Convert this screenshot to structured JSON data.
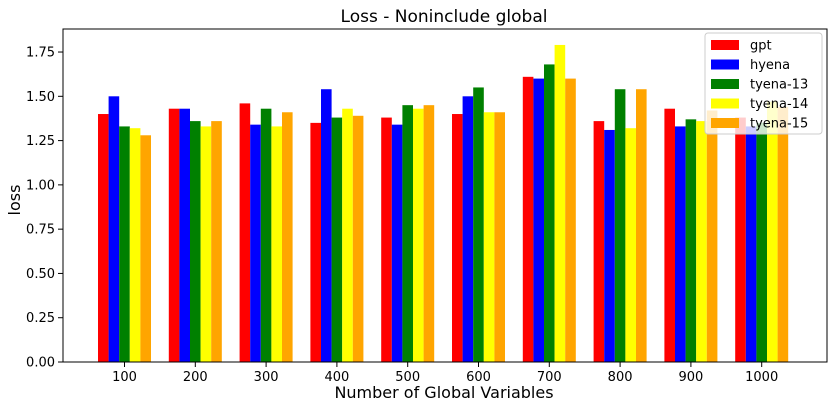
{
  "chart_data": {
    "type": "bar",
    "title": "Loss - Noninclude global",
    "xlabel": "Number of Global Variables",
    "ylabel": "loss",
    "categories": [
      "100",
      "200",
      "300",
      "400",
      "500",
      "600",
      "700",
      "800",
      "900",
      "1000"
    ],
    "ylim": [
      0,
      1.88
    ],
    "yticks": [
      "0.00",
      "0.25",
      "0.50",
      "0.75",
      "1.00",
      "1.25",
      "1.50",
      "1.75"
    ],
    "legend_position": "top-right",
    "series": [
      {
        "name": "gpt",
        "color": "#ff0000",
        "values": [
          1.4,
          1.43,
          1.46,
          1.35,
          1.38,
          1.4,
          1.61,
          1.36,
          1.43,
          1.38
        ]
      },
      {
        "name": "hyena",
        "color": "#0000ff",
        "values": [
          1.5,
          1.43,
          1.34,
          1.54,
          1.34,
          1.5,
          1.6,
          1.31,
          1.33,
          1.33
        ]
      },
      {
        "name": "tyena-13",
        "color": "#008000",
        "values": [
          1.33,
          1.36,
          1.43,
          1.38,
          1.45,
          1.55,
          1.68,
          1.54,
          1.37,
          1.35
        ]
      },
      {
        "name": "tyena-14",
        "color": "#ffff00",
        "values": [
          1.32,
          1.33,
          1.33,
          1.43,
          1.43,
          1.41,
          1.79,
          1.32,
          1.36,
          1.47
        ]
      },
      {
        "name": "tyena-15",
        "color": "#ffa500",
        "values": [
          1.28,
          1.36,
          1.41,
          1.39,
          1.45,
          1.41,
          1.6,
          1.54,
          1.42,
          1.44
        ]
      }
    ]
  }
}
